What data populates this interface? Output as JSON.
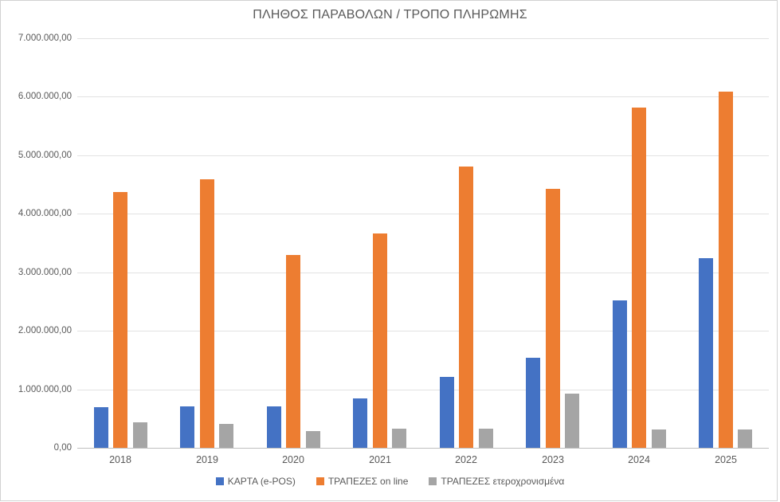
{
  "chart": {
    "title": "ΠΛΗΘΟΣ ΠΑΡΑΒΟΛΩΝ / ΤΡΟΠΟ ΠΛΗΡΩΜΗΣ"
  },
  "chart_data": {
    "type": "bar",
    "title": "ΠΛΗΘΟΣ ΠΑΡΑΒΟΛΩΝ / ΤΡΟΠΟ ΠΛΗΡΩΜΗΣ",
    "categories": [
      "2018",
      "2019",
      "2020",
      "2021",
      "2022",
      "2023",
      "2024",
      "2025"
    ],
    "series": [
      {
        "name": "ΚΑΡΤΑ (e-POS)",
        "color": "#4472C4",
        "values": [
          700000,
          710000,
          710000,
          850000,
          1210000,
          1540000,
          2520000,
          3240000
        ]
      },
      {
        "name": "ΤΡΑΠΕΖΕΣ on line",
        "color": "#ED7D31",
        "values": [
          4370000,
          4590000,
          3290000,
          3660000,
          4810000,
          4420000,
          5810000,
          6090000
        ]
      },
      {
        "name": "ΤΡΑΠΕΖΕΣ ετεροχρονισμένα",
        "color": "#A5A5A5",
        "values": [
          430000,
          410000,
          280000,
          330000,
          330000,
          930000,
          310000,
          310000
        ]
      }
    ],
    "ylim": [
      0,
      7000000
    ],
    "y_tick_step": 1000000,
    "y_tick_labels_top_to_bottom": [
      "7.000.000,00",
      "6.000.000,00",
      "5.000.000,00",
      "4.000.000,00",
      "3.000.000,00",
      "2.000.000,00",
      "1.000.000,00",
      "0,00"
    ],
    "grid": true,
    "legend_position": "bottom"
  },
  "colors": {
    "title_text": "#595959",
    "axis_text": "#595959",
    "gridline": "#e2e2e2",
    "axis_line": "#bfbfbf",
    "frame_border": "#d2d2d2",
    "background": "#ffffff"
  }
}
